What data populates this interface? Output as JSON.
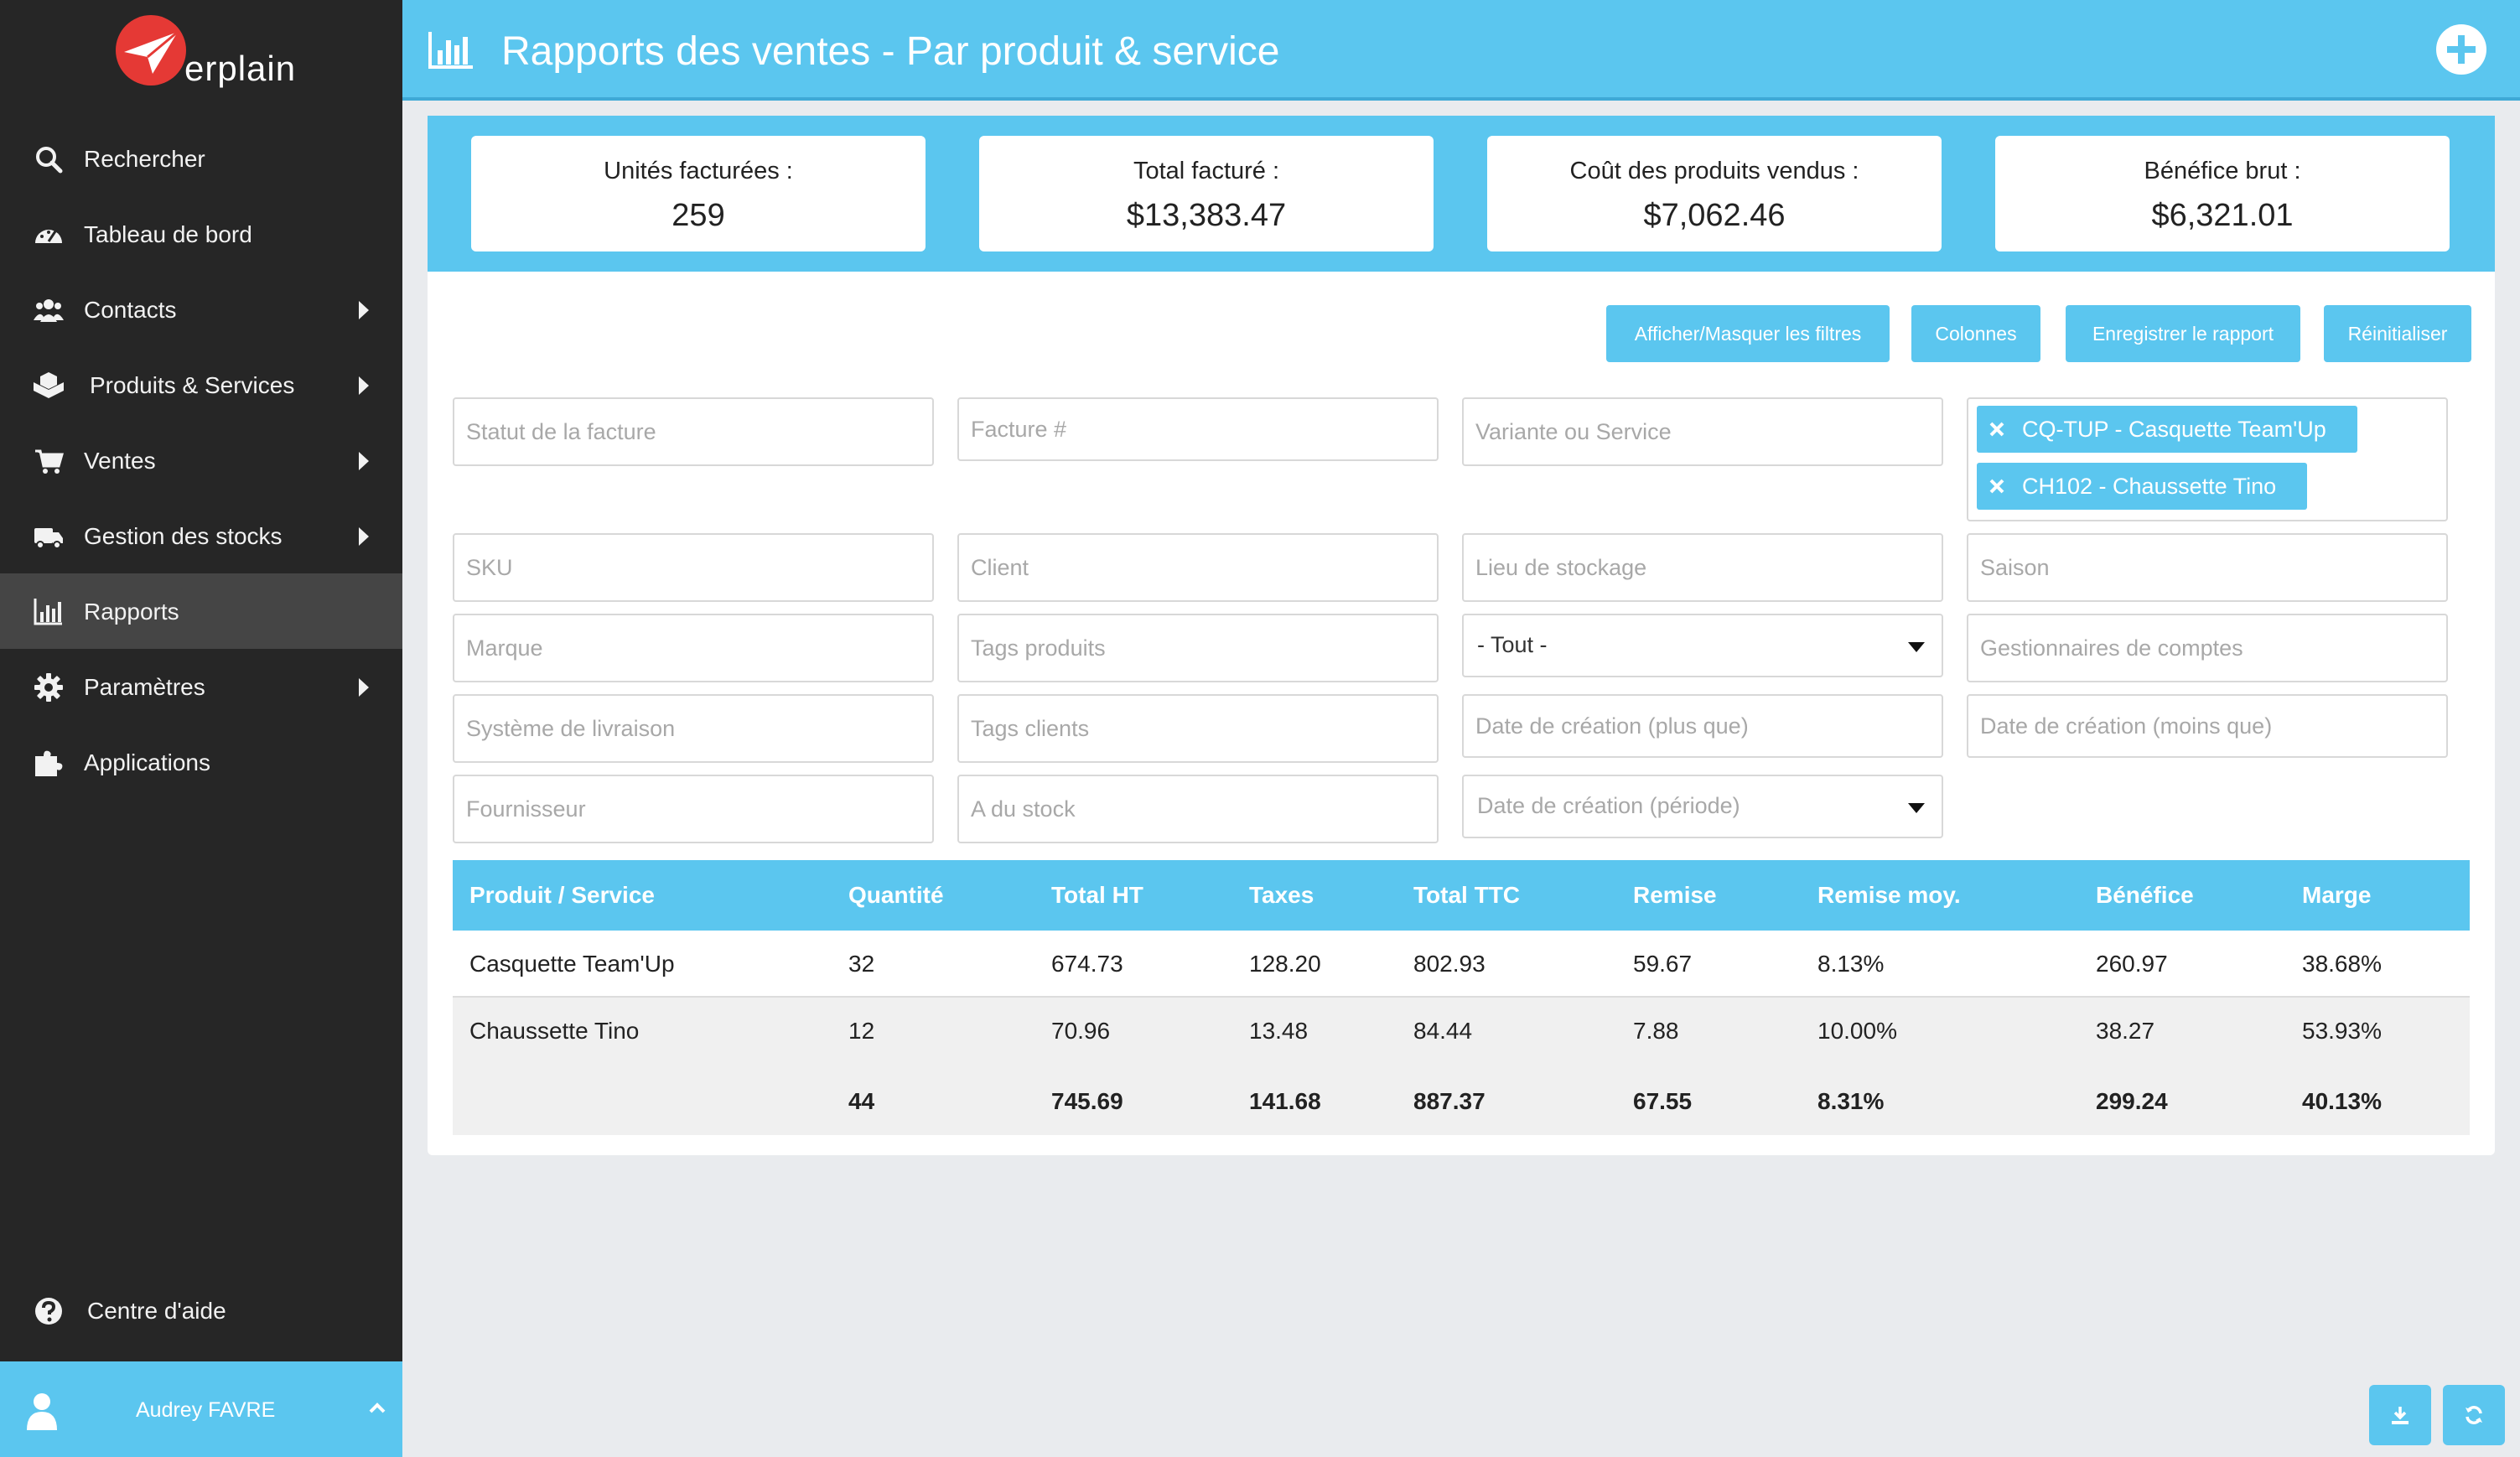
{
  "app": {
    "logo_text": "erplain"
  },
  "sidebar": {
    "items": [
      {
        "label": "Rechercher",
        "icon": "search-icon",
        "arrow": false
      },
      {
        "label": "Tableau de bord",
        "icon": "dashboard-icon",
        "arrow": false
      },
      {
        "label": "Contacts",
        "icon": "users-icon",
        "arrow": true
      },
      {
        "label": "Produits & Services",
        "icon": "cubes-icon",
        "arrow": true
      },
      {
        "label": "Ventes",
        "icon": "cart-icon",
        "arrow": true
      },
      {
        "label": "Gestion des stocks",
        "icon": "truck-icon",
        "arrow": true
      },
      {
        "label": "Rapports",
        "icon": "bar-chart-icon",
        "arrow": false,
        "active": true
      },
      {
        "label": "Paramètres",
        "icon": "gear-icon",
        "arrow": true
      },
      {
        "label": "Applications",
        "icon": "puzzle-icon",
        "arrow": false
      }
    ],
    "help_label": "Centre d'aide",
    "user_name": "Audrey FAVRE"
  },
  "header": {
    "title": "Rapports des ventes - Par produit & service"
  },
  "stats": [
    {
      "label": "Unités facturées :",
      "value": "259"
    },
    {
      "label": "Total facturé :",
      "value": "$13,383.47"
    },
    {
      "label": "Coût des produits vendus :",
      "value": "$7,062.46"
    },
    {
      "label": "Bénéfice brut :",
      "value": "$6,321.01"
    }
  ],
  "actions": {
    "toggle_filters": "Afficher/Masquer les filtres",
    "columns": "Colonnes",
    "save_report": "Enregistrer le rapport",
    "reset": "Réinitialiser"
  },
  "filters": {
    "invoice_status": "Statut de la facture",
    "invoice_number": "Facture #",
    "variant_or_service": "Variante ou Service",
    "sku": "SKU",
    "client": "Client",
    "storage_location": "Lieu de stockage",
    "season": "Saison",
    "brand": "Marque",
    "product_tags": "Tags produits",
    "all_select": "- Tout -",
    "account_managers": "Gestionnaires de comptes",
    "shipping_system": "Système de livraison",
    "client_tags": "Tags clients",
    "created_after": "Date de création (plus que)",
    "created_before": "Date de création (moins que)",
    "supplier": "Fournisseur",
    "has_stock": "A du stock",
    "created_period": "Date de création (période)",
    "selected_products": [
      "CQ-TUP - Casquette Team'Up",
      "CH102 - Chaussette Tino"
    ]
  },
  "table": {
    "headers": [
      "Produit / Service",
      "Quantité",
      "Total HT",
      "Taxes",
      "Total TTC",
      "Remise",
      "Remise moy.",
      "Bénéfice",
      "Marge"
    ],
    "rows": [
      [
        "Casquette Team'Up",
        "32",
        "674.73",
        "128.20",
        "802.93",
        "59.67",
        "8.13%",
        "260.97",
        "38.68%"
      ],
      [
        "Chaussette Tino",
        "12",
        "70.96",
        "13.48",
        "84.44",
        "7.88",
        "10.00%",
        "38.27",
        "53.93%"
      ]
    ],
    "totals": [
      "",
      "44",
      "745.69",
      "141.68",
      "887.37",
      "67.55",
      "8.31%",
      "299.24",
      "40.13%"
    ]
  },
  "colors": {
    "accent": "#5bc6ef",
    "sidebar": "#262626",
    "logo_red": "#e53935"
  }
}
